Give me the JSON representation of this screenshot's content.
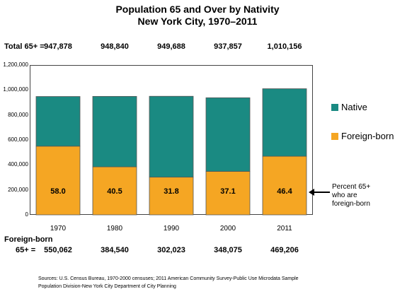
{
  "title_line1": "Population 65 and Over by Nativity",
  "title_line2": "New York City, 1970–2011",
  "totals_label": "Total 65+ =",
  "foreign_label_line1": "Foreign-born",
  "foreign_label_line2": "65+ =",
  "percent_note": [
    "Percent 65+",
    "who are",
    "foreign-born"
  ],
  "source_lines": [
    "Sources: U.S. Census Bureau, 1970-2000 censuses; 2011 American Community Survey-Public Use Microdata Sample",
    "Population Division-New York City Department of City Planning"
  ],
  "colors": {
    "native": "#1a8a82",
    "foreign": "#f5a623"
  },
  "chart_data": {
    "type": "bar",
    "stacked": true,
    "categories": [
      "1970",
      "1980",
      "1990",
      "2000",
      "2011"
    ],
    "series": [
      {
        "name": "Foreign-born",
        "values": [
          550062,
          384540,
          302023,
          348075,
          469206
        ]
      },
      {
        "name": "Native",
        "values": [
          397816,
          564300,
          647665,
          589782,
          540950
        ]
      }
    ],
    "totals": [
      947878,
      948840,
      949688,
      937857,
      1010156
    ],
    "totals_text": [
      "947,878",
      "948,840",
      "949,688",
      "937,857",
      "1,010,156"
    ],
    "foreign_text": [
      "550,062",
      "384,540",
      "302,023",
      "348,075",
      "469,206"
    ],
    "percent_foreign": [
      "58.0",
      "40.5",
      "31.8",
      "37.1",
      "46.4"
    ],
    "ylim": [
      0,
      1200000
    ],
    "yticks": [
      "0",
      "200,000",
      "400,000",
      "600,000",
      "800,000",
      "1,000,000",
      "1,200,000"
    ],
    "legend": [
      "Native",
      "Foreign-born"
    ],
    "legend_position": "right",
    "grid": false
  }
}
